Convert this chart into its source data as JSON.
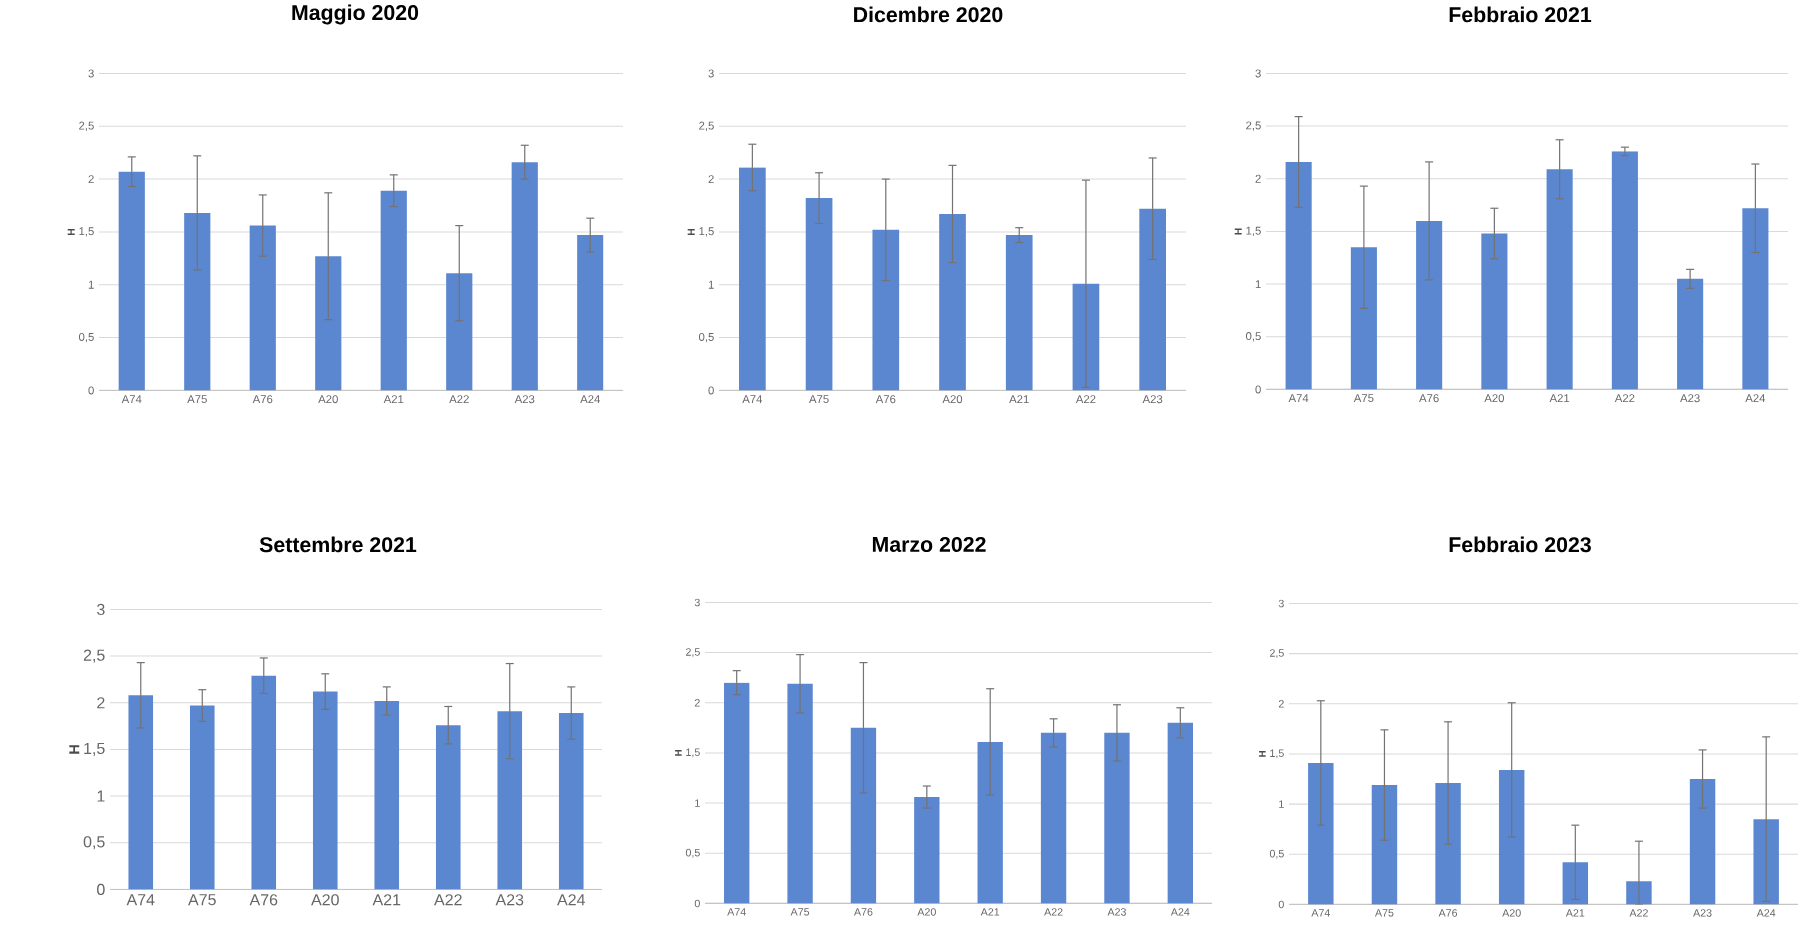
{
  "chart_data": [
    {
      "type": "bar",
      "title": "Maggio 2020",
      "ylabel": "H",
      "categories": [
        "A74",
        "A75",
        "A76",
        "A20",
        "A21",
        "A22",
        "A23",
        "A24"
      ],
      "values": [
        2.07,
        1.68,
        1.56,
        1.27,
        1.89,
        1.11,
        2.16,
        1.47
      ],
      "errors": [
        0.14,
        0.54,
        0.29,
        0.6,
        0.15,
        0.45,
        0.16,
        0.16
      ],
      "color": "#5b87d0",
      "ylim": [
        0,
        3
      ],
      "yticks": [
        0,
        {
          "value": 0.5,
          "label": "0,5"
        },
        1,
        {
          "value": 1.5,
          "label": "1,5"
        },
        2,
        {
          "value": 2.5,
          "label": "2,5"
        },
        3
      ],
      "grid": "y"
    },
    {
      "type": "bar",
      "title": "Dicembre 2020",
      "ylabel": "H",
      "categories": [
        "A74",
        "A75",
        "A76",
        "A20",
        "A21",
        "A22",
        "A23"
      ],
      "values": [
        2.11,
        1.82,
        1.52,
        1.67,
        1.47,
        1.01,
        1.72
      ],
      "errors": [
        0.22,
        0.24,
        0.48,
        0.46,
        0.07,
        0.98,
        0.48
      ],
      "color": "#5b87d0",
      "ylim": [
        0,
        3
      ],
      "yticks": [
        0,
        {
          "value": 0.5,
          "label": "0,5"
        },
        1,
        {
          "value": 1.5,
          "label": "1,5"
        },
        2,
        {
          "value": 2.5,
          "label": "2,5"
        },
        3
      ],
      "grid": "y"
    },
    {
      "type": "bar",
      "title": "Febbraio 2021",
      "ylabel": "H",
      "categories": [
        "A74",
        "A75",
        "A76",
        "A20",
        "A21",
        "A22",
        "A23",
        "A24"
      ],
      "values": [
        2.16,
        1.35,
        1.6,
        1.48,
        2.09,
        2.26,
        1.05,
        1.72
      ],
      "errors": [
        0.43,
        0.58,
        0.56,
        0.24,
        0.28,
        0.04,
        0.09,
        0.42
      ],
      "color": "#5b87d0",
      "ylim": [
        0,
        3
      ],
      "yticks": [
        0,
        {
          "value": 0.5,
          "label": "0,5"
        },
        1,
        {
          "value": 1.5,
          "label": "1,5"
        },
        2,
        {
          "value": 2.5,
          "label": "2,5"
        },
        3
      ],
      "grid": "y"
    },
    {
      "type": "bar",
      "title": "Settembre 2021",
      "ylabel": "H",
      "categories": [
        "A74",
        "A75",
        "A76",
        "A20",
        "A21",
        "A22",
        "A23",
        "A24"
      ],
      "values": [
        2.08,
        1.97,
        2.29,
        2.12,
        2.02,
        1.76,
        1.91,
        1.89
      ],
      "errors": [
        0.35,
        0.17,
        0.19,
        0.19,
        0.15,
        0.2,
        0.51,
        0.28
      ],
      "color": "#5b87d0",
      "ylim": [
        0,
        3
      ],
      "yticks": [
        0,
        {
          "value": 0.5,
          "label": "0,5"
        },
        1,
        {
          "value": 1.5,
          "label": "1,5"
        },
        2,
        {
          "value": 2.5,
          "label": "2,5"
        },
        3
      ],
      "grid": "y"
    },
    {
      "type": "bar",
      "title": "Marzo 2022",
      "ylabel": "H",
      "categories": [
        "A74",
        "A75",
        "A76",
        "A20",
        "A21",
        "A22",
        "A23",
        "A24"
      ],
      "values": [
        2.2,
        2.19,
        1.75,
        1.06,
        1.61,
        1.7,
        1.7,
        1.8
      ],
      "errors": [
        0.12,
        0.29,
        0.65,
        0.11,
        0.53,
        0.14,
        0.28,
        0.15
      ],
      "color": "#5b87d0",
      "ylim": [
        0,
        3
      ],
      "yticks": [
        0,
        {
          "value": 0.5,
          "label": "0,5"
        },
        1,
        {
          "value": 1.5,
          "label": "1,5"
        },
        2,
        {
          "value": 2.5,
          "label": "2,5"
        },
        3
      ],
      "grid": "y"
    },
    {
      "type": "bar",
      "title": "Febbraio 2023",
      "ylabel": "H",
      "categories": [
        "A74",
        "A75",
        "A76",
        "A20",
        "A21",
        "A22",
        "A23",
        "A24"
      ],
      "values": [
        1.41,
        1.19,
        1.21,
        1.34,
        0.42,
        0.23,
        1.25,
        0.85
      ],
      "errors": [
        0.62,
        0.55,
        0.61,
        0.67,
        0.37,
        [
          0,
          0.63
        ],
        0.29,
        0.82
      ],
      "color": "#5b87d0",
      "ylim": [
        0,
        3
      ],
      "yticks": [
        0,
        {
          "value": 0.5,
          "label": "0,5"
        },
        1,
        {
          "value": 1.5,
          "label": "1,5"
        },
        2,
        {
          "value": 2.5,
          "label": "2,5"
        },
        3
      ],
      "grid": "y"
    }
  ]
}
